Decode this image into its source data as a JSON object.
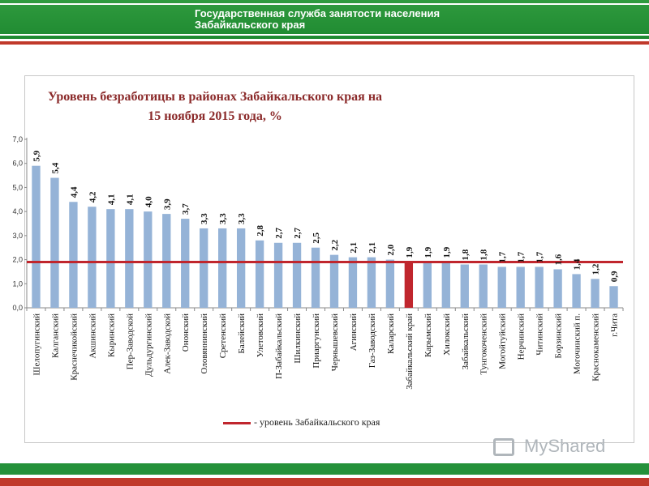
{
  "header": {
    "line1": "Государственная служба занятости населения",
    "line2": "Забайкальского края"
  },
  "watermark": {
    "text": "MyShared"
  },
  "colors": {
    "bar": "#95b3d7",
    "highlight_bar": "#c0262d",
    "reference_line": "#c0262d"
  },
  "chart_data": {
    "type": "bar",
    "title_line1": "Уровень безработицы в районах Забайкальского края на",
    "title_line2": "15 ноября 2015 года, %",
    "categories": [
      "Шелопугинский",
      "Калганский",
      "Краснечикойский",
      "Акшинский",
      "Кыринский",
      "Пер-Заводской",
      "Дульдургинский",
      "Алек-Заводской",
      "Ононский",
      "Оловяннинский",
      "Сретенский",
      "Балейский",
      "Улетовский",
      "П-Забайкальский",
      "Шилкинский",
      "Приаргунский",
      "Чернышевский",
      "Агинский",
      "Газ-Заводский",
      "Каларский",
      "Забайкальский край",
      "Карымский",
      "Хилокский",
      "Забайкальский",
      "Тунгокоченский",
      "Могойтуйский",
      "Нерчинский",
      "Читинский",
      "Борзинский",
      "Могочинский п.",
      "Краснокаменский",
      "г.Чита"
    ],
    "values": [
      5.9,
      5.4,
      4.4,
      4.2,
      4.1,
      4.1,
      4.0,
      3.9,
      3.7,
      3.3,
      3.3,
      3.3,
      2.8,
      2.7,
      2.7,
      2.5,
      2.2,
      2.1,
      2.1,
      2.0,
      1.9,
      1.9,
      1.9,
      1.8,
      1.8,
      1.7,
      1.7,
      1.7,
      1.6,
      1.4,
      1.2,
      0.9
    ],
    "value_labels": [
      "5,9",
      "5,4",
      "4,4",
      "4,2",
      "4,1",
      "4,1",
      "4,0",
      "3,9",
      "3,7",
      "3,3",
      "3,3",
      "3,3",
      "2,8",
      "2,7",
      "2,7",
      "2,5",
      "2,2",
      "2,1",
      "2,1",
      "2,0",
      "1,9",
      "1,9",
      "1,9",
      "1,8",
      "1,8",
      "1,7",
      "1,7",
      "1,7",
      "1,6",
      "1,4",
      "1,2",
      "0,9"
    ],
    "highlight_category": "Забайкальский край",
    "y_ticks": [
      0,
      1,
      2,
      3,
      4,
      5,
      6,
      7
    ],
    "y_tick_labels": [
      "0,0",
      "1,0",
      "2,0",
      "3,0",
      "4,0",
      "5,0",
      "6,0",
      "7,0"
    ],
    "ylim": [
      0,
      7
    ],
    "reference_line": {
      "value": 1.9,
      "label": "- уровень Забайкальского края"
    },
    "legend_position": "bottom"
  }
}
